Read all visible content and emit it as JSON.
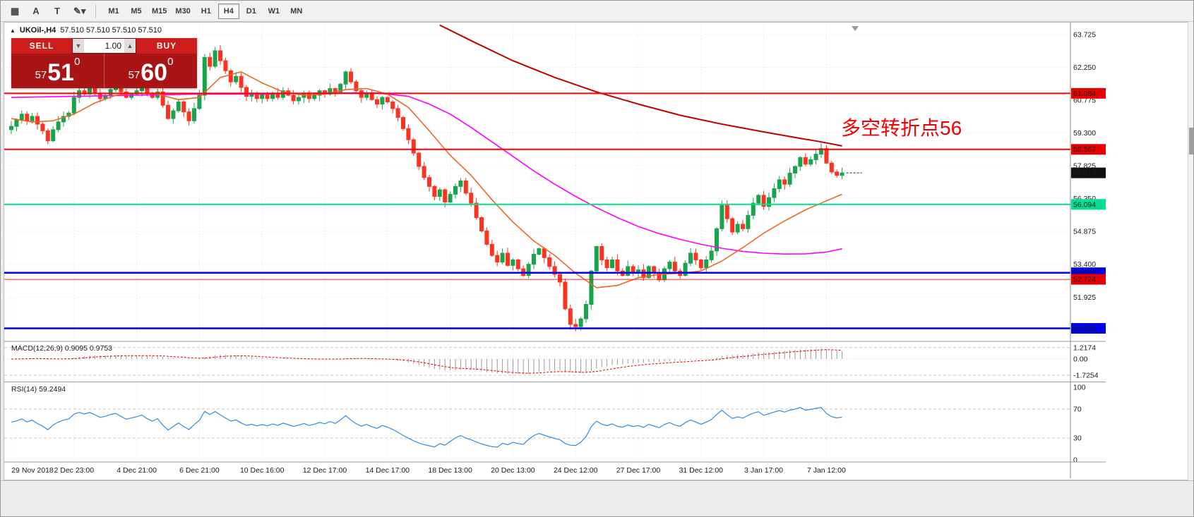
{
  "toolbar": {
    "icon_buttons": [
      {
        "name": "chart-grid-icon",
        "glyph": "▦"
      },
      {
        "name": "font-a-icon",
        "glyph": "A"
      },
      {
        "name": "text-label-icon",
        "glyph": "T"
      },
      {
        "name": "draw-tools-dropdown-icon",
        "glyph": "✎▾"
      }
    ],
    "timeframes": [
      {
        "label": "M1"
      },
      {
        "label": "M5"
      },
      {
        "label": "M15"
      },
      {
        "label": "M30"
      },
      {
        "label": "H1"
      },
      {
        "label": "H4",
        "active": true
      },
      {
        "label": "D1"
      },
      {
        "label": "W1"
      },
      {
        "label": "MN"
      }
    ]
  },
  "chart_header": {
    "collapse_glyph": "▲",
    "symbol": "UKOil-,H4",
    "ohlc": "57.510 57.510 57.510 57.510"
  },
  "trade_panel": {
    "sell_label": "SELL",
    "buy_label": "BUY",
    "volume": "1.00",
    "vol_down_glyph": "▼",
    "vol_up_glyph": "▲",
    "sell_price": {
      "small": "57",
      "big": "51",
      "sup": "0"
    },
    "buy_price": {
      "small": "57",
      "big": "60",
      "sup": "0"
    }
  },
  "annotation": {
    "text": "多空转折点56",
    "color": "#f00000"
  },
  "colors": {
    "up": "#18a44c",
    "down": "#fd3320",
    "ma_fast": "#f26522",
    "ma_slow": "#ff00ff",
    "ma_long": "#c00000",
    "macd_hist": "#9a9a9a",
    "macd_signal": "#e00000",
    "rsi": "#2f8ce0",
    "grid": "#e0e0e0",
    "level_dash": "#c8c8c8"
  },
  "chart_data": [
    {
      "type": "candlestick",
      "title": "UKOil- H4 price chart",
      "ylim": [
        50.0,
        64.17
      ],
      "y_ticks": [
        {
          "v": 63.725,
          "label": "63.725"
        },
        {
          "v": 62.25,
          "label": "62.250"
        },
        {
          "v": 60.775,
          "label": "60.775"
        },
        {
          "v": 59.3,
          "label": "59.300"
        },
        {
          "v": 57.825,
          "label": "57.825"
        },
        {
          "v": 56.35,
          "label": "56.350"
        },
        {
          "v": 54.875,
          "label": "54.875"
        },
        {
          "v": 53.4,
          "label": "53.400"
        },
        {
          "v": 51.925,
          "label": "51.925"
        },
        {
          "v": 50.45,
          "label": "50.450"
        }
      ],
      "x_labels": [
        {
          "i": 0,
          "text": "29 Nov 2018"
        },
        {
          "i": 12,
          "text": "2 Dec 23:00"
        },
        {
          "i": 24,
          "text": "4 Dec 21:00"
        },
        {
          "i": 36,
          "text": "6 Dec 21:00"
        },
        {
          "i": 48,
          "text": "10 Dec 16:00"
        },
        {
          "i": 60,
          "text": "12 Dec 17:00"
        },
        {
          "i": 72,
          "text": "14 Dec 17:00"
        },
        {
          "i": 84,
          "text": "18 Dec 13:00"
        },
        {
          "i": 96,
          "text": "20 Dec 13:00"
        },
        {
          "i": 108,
          "text": "24 Dec 12:00"
        },
        {
          "i": 120,
          "text": "27 Dec 17:00"
        },
        {
          "i": 132,
          "text": "31 Dec 12:00"
        },
        {
          "i": 144,
          "text": "3 Jan 17:00"
        },
        {
          "i": 156,
          "text": "7 Jan 12:00"
        }
      ],
      "closes": [
        59.6,
        59.9,
        60.15,
        59.85,
        60.05,
        59.7,
        59.4,
        58.95,
        59.45,
        59.8,
        60.05,
        60.2,
        60.9,
        61.2,
        61.05,
        61.3,
        61.1,
        60.85,
        61.0,
        61.25,
        61.4,
        61.15,
        60.9,
        61.05,
        61.2,
        61.4,
        61.1,
        60.9,
        61.15,
        60.55,
        59.95,
        60.3,
        60.7,
        60.25,
        59.85,
        60.4,
        61.0,
        62.7,
        62.3,
        63.0,
        62.55,
        62.1,
        61.6,
        61.85,
        61.35,
        60.95,
        61.1,
        60.85,
        61.05,
        60.85,
        61.1,
        60.9,
        61.2,
        61.0,
        60.75,
        60.9,
        61.1,
        60.85,
        61.0,
        61.2,
        61.05,
        61.3,
        61.1,
        61.5,
        62.05,
        61.6,
        61.2,
        60.9,
        61.1,
        60.8,
        60.6,
        60.9,
        60.7,
        60.4,
        60.0,
        59.5,
        59.0,
        58.4,
        57.8,
        57.3,
        56.9,
        56.45,
        56.75,
        56.2,
        56.55,
        56.9,
        57.15,
        56.6,
        56.15,
        55.5,
        54.9,
        54.3,
        53.8,
        53.5,
        53.9,
        53.35,
        53.6,
        53.2,
        52.9,
        53.4,
        53.85,
        54.1,
        53.7,
        53.3,
        52.95,
        52.6,
        51.4,
        50.7,
        50.6,
        50.95,
        51.6,
        53.1,
        54.2,
        53.6,
        53.25,
        53.6,
        53.1,
        52.9,
        53.3,
        53.0,
        53.15,
        52.8,
        53.3,
        53.0,
        52.7,
        53.2,
        53.5,
        53.1,
        52.9,
        53.45,
        53.9,
        53.6,
        53.25,
        53.6,
        54.0,
        55.0,
        56.05,
        55.45,
        54.85,
        55.2,
        55.0,
        55.6,
        56.15,
        56.5,
        56.0,
        56.4,
        56.8,
        57.2,
        57.0,
        57.5,
        57.8,
        58.2,
        57.9,
        58.1,
        58.35,
        58.6,
        57.95,
        57.55,
        57.4,
        57.51
      ],
      "ma_lines": [
        {
          "name": "ma-slow-magenta",
          "color_key": "ma_slow",
          "width": 1.6,
          "points": [
            [
              0,
              60.9
            ],
            [
              12,
              60.95
            ],
            [
              24,
              61.0
            ],
            [
              36,
              61.05
            ],
            [
              48,
              61.05
            ],
            [
              60,
              61.1
            ],
            [
              70,
              61.1
            ],
            [
              76,
              60.95
            ],
            [
              80,
              60.6
            ],
            [
              84,
              60.15
            ],
            [
              88,
              59.55
            ],
            [
              92,
              58.9
            ],
            [
              96,
              58.25
            ],
            [
              100,
              57.6
            ],
            [
              104,
              57.0
            ],
            [
              108,
              56.45
            ],
            [
              112,
              55.95
            ],
            [
              116,
              55.5
            ],
            [
              120,
              55.1
            ],
            [
              124,
              54.78
            ],
            [
              128,
              54.52
            ],
            [
              132,
              54.3
            ],
            [
              136,
              54.12
            ],
            [
              140,
              53.98
            ],
            [
              144,
              53.9
            ],
            [
              148,
              53.86
            ],
            [
              152,
              53.87
            ],
            [
              156,
              53.95
            ],
            [
              159,
              54.1
            ]
          ]
        },
        {
          "name": "ma-fast-orange",
          "color_key": "ma_fast",
          "width": 1.6,
          "points": [
            [
              0,
              59.95
            ],
            [
              4,
              59.8
            ],
            [
              8,
              59.85
            ],
            [
              12,
              60.15
            ],
            [
              16,
              60.65
            ],
            [
              20,
              61.0
            ],
            [
              24,
              61.1
            ],
            [
              28,
              61.05
            ],
            [
              32,
              60.8
            ],
            [
              36,
              60.9
            ],
            [
              40,
              61.8
            ],
            [
              44,
              62.05
            ],
            [
              48,
              61.55
            ],
            [
              52,
              61.15
            ],
            [
              56,
              61.0
            ],
            [
              60,
              61.05
            ],
            [
              64,
              61.25
            ],
            [
              68,
              61.3
            ],
            [
              72,
              61.05
            ],
            [
              76,
              60.45
            ],
            [
              80,
              59.4
            ],
            [
              84,
              58.3
            ],
            [
              88,
              57.4
            ],
            [
              92,
              56.3
            ],
            [
              96,
              55.3
            ],
            [
              100,
              54.45
            ],
            [
              104,
              53.8
            ],
            [
              108,
              53.0
            ],
            [
              112,
              52.35
            ],
            [
              116,
              52.45
            ],
            [
              120,
              52.8
            ],
            [
              124,
              52.95
            ],
            [
              128,
              53.0
            ],
            [
              132,
              53.1
            ],
            [
              136,
              53.55
            ],
            [
              140,
              54.15
            ],
            [
              144,
              54.8
            ],
            [
              148,
              55.35
            ],
            [
              152,
              55.85
            ],
            [
              156,
              56.25
            ],
            [
              159,
              56.55
            ]
          ]
        },
        {
          "name": "ma-long-darkred",
          "color_key": "ma_long",
          "width": 2,
          "points": [
            [
              82,
              64.15
            ],
            [
              88,
              63.45
            ],
            [
              96,
              62.55
            ],
            [
              104,
              61.8
            ],
            [
              112,
              61.15
            ],
            [
              120,
              60.6
            ],
            [
              128,
              60.1
            ],
            [
              136,
              59.7
            ],
            [
              144,
              59.35
            ],
            [
              150,
              59.1
            ],
            [
              155,
              58.9
            ],
            [
              159,
              58.72
            ]
          ]
        }
      ],
      "hlines": [
        {
          "value": 61.084,
          "label": "61.084",
          "color": "#ff0000",
          "width": 2,
          "badge_bg": "#e80000",
          "badge_fg": "#ffffff"
        },
        {
          "value": 58.567,
          "label": "58.567",
          "color": "#ff0000",
          "width": 2,
          "badge_bg": "#e80000",
          "badge_fg": "#ffffff"
        },
        {
          "value": 56.094,
          "label": "56.094",
          "color": "#00e08e",
          "width": 2,
          "badge_bg": "#00e08e",
          "badge_fg": "#00331c"
        },
        {
          "value": 53.021,
          "label": "53.021",
          "color": "#0000e8",
          "width": 2.5,
          "badge_bg": "#0000e8",
          "badge_fg": "#ffffff"
        },
        {
          "value": 52.724,
          "label": "52.724",
          "color": "#ff2020",
          "width": 1,
          "badge_bg": "#e80000",
          "badge_fg": "#ffffff"
        },
        {
          "value": 50.522,
          "label": "50.522",
          "color": "#0000e8",
          "width": 2.5,
          "badge_bg": "#0000e8",
          "badge_fg": "#ffffff"
        }
      ],
      "current_price": {
        "value": 57.51,
        "label": "57.510",
        "badge_bg": "#111111",
        "badge_fg": "#ffffff"
      }
    },
    {
      "type": "macd",
      "label": "MACD(12,26,9)",
      "values_text": "0.9095 0.9753",
      "y_ticks": [
        {
          "v": 1.2174,
          "label": "1.2174"
        },
        {
          "v": 0,
          "label": "0.00"
        },
        {
          "v": -1.7254,
          "label": "-1.7254"
        }
      ],
      "params": {
        "fast": 12,
        "slow": 26,
        "signal": 9
      }
    },
    {
      "type": "line",
      "label": "RSI(14)",
      "value_text": "59.2494",
      "y_ticks": [
        {
          "v": 100,
          "label": "100"
        },
        {
          "v": 70,
          "label": "70"
        },
        {
          "v": 30,
          "label": "30"
        },
        {
          "v": 0,
          "label": "0"
        }
      ],
      "levels": [
        70,
        30
      ],
      "params": {
        "period": 14
      }
    }
  ]
}
